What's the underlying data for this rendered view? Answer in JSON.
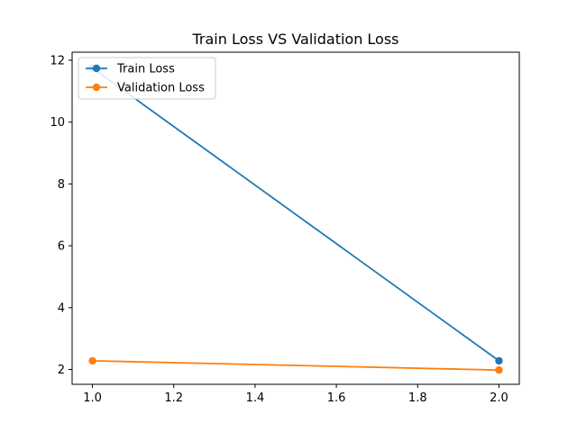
{
  "chart_data": {
    "type": "line",
    "title": "Train Loss VS Validation Loss",
    "xlabel": "",
    "ylabel": "",
    "x": [
      1.0,
      2.0
    ],
    "xlim": [
      0.95,
      2.05
    ],
    "ylim": [
      1.52,
      12.26
    ],
    "xticks": [
      "1.0",
      "1.2",
      "1.4",
      "1.6",
      "1.8",
      "2.0"
    ],
    "yticks": [
      "2",
      "4",
      "6",
      "8",
      "10",
      "12"
    ],
    "grid": false,
    "legend_position": "upper-left",
    "series": [
      {
        "name": "Train Loss",
        "color": "#1f77b4",
        "marker": "circle",
        "values": [
          11.75,
          2.28
        ]
      },
      {
        "name": "Validation Loss",
        "color": "#ff7f0e",
        "marker": "circle",
        "values": [
          2.28,
          1.98
        ]
      }
    ]
  }
}
